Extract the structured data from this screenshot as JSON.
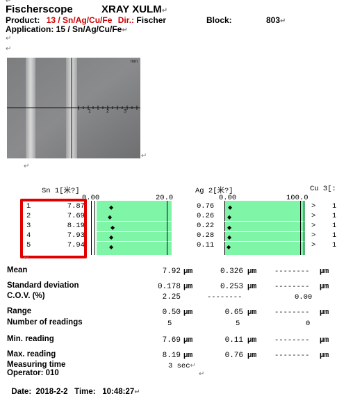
{
  "pilcrow": "↵",
  "header": {
    "instrument": "Fischerscope",
    "model": "XRAY XULM",
    "product_label": "Product:",
    "product_value": "13 / Sn/Ag/Cu/Fe",
    "dir_label": "Dir.:",
    "dir_value": "Fischer",
    "block_label": "Block:",
    "block_value": "803",
    "application": "Application: 15 / Sn/Ag/Cu/Fe"
  },
  "image": {
    "unit_label": "mm",
    "scale_ticks": [
      "1",
      "2",
      "3"
    ]
  },
  "channels": {
    "sn": {
      "label": "Sn 1[米?]",
      "scale_min": "0.00",
      "scale_max": "20.0"
    },
    "ag": {
      "label": "Ag 2[米?]",
      "scale_min": "0.00",
      "scale_max": "100.0"
    },
    "cu": {
      "label": "Cu 3[:"
    }
  },
  "readings": [
    {
      "n": "1",
      "sn": "7.87",
      "ag": "0.76"
    },
    {
      "n": "2",
      "sn": "7.69",
      "ag": "0.26"
    },
    {
      "n": "3",
      "sn": "8.19",
      "ag": "0.22"
    },
    {
      "n": "4",
      "sn": "7.93",
      "ag": "0.28"
    },
    {
      "n": "5",
      "sn": "7.94",
      "ag": "0.11"
    }
  ],
  "cu_marker": ">",
  "cu_digit": "1",
  "stats": {
    "mean": {
      "label": "Mean",
      "sn": "7.92",
      "ag": "0.326",
      "cu": "--------"
    },
    "sd": {
      "label": "Standard deviation",
      "sn": "0.178",
      "ag": "0.253",
      "cu": "--------"
    },
    "cov": {
      "label": "C.O.V. (%)",
      "sn": "2.25",
      "ag": "--------",
      "cu": "0.00"
    },
    "range": {
      "label": "Range",
      "sn": "0.50",
      "ag": "0.65",
      "cu": "--------"
    },
    "num": {
      "label": "Number of readings",
      "sn": "5",
      "ag": "5",
      "cu": "0"
    },
    "min": {
      "label": "Min. reading",
      "sn": "7.69",
      "ag": "0.11",
      "cu": "--------"
    },
    "max": {
      "label": "Max. reading",
      "sn": "8.19",
      "ag": "0.76",
      "cu": "--------"
    }
  },
  "unit": "µm",
  "unit_trunc": "µm",
  "footer": {
    "measuring_label": "Measuring time",
    "measuring_value": "3 sec",
    "operator": "Operator:  010",
    "date": "Date:  2018-2-2   Time:   10:48:27"
  },
  "colors": {
    "bar_fill": "#7ff5a8",
    "highlight_box": "#e00000",
    "product_red": "#d00000"
  }
}
